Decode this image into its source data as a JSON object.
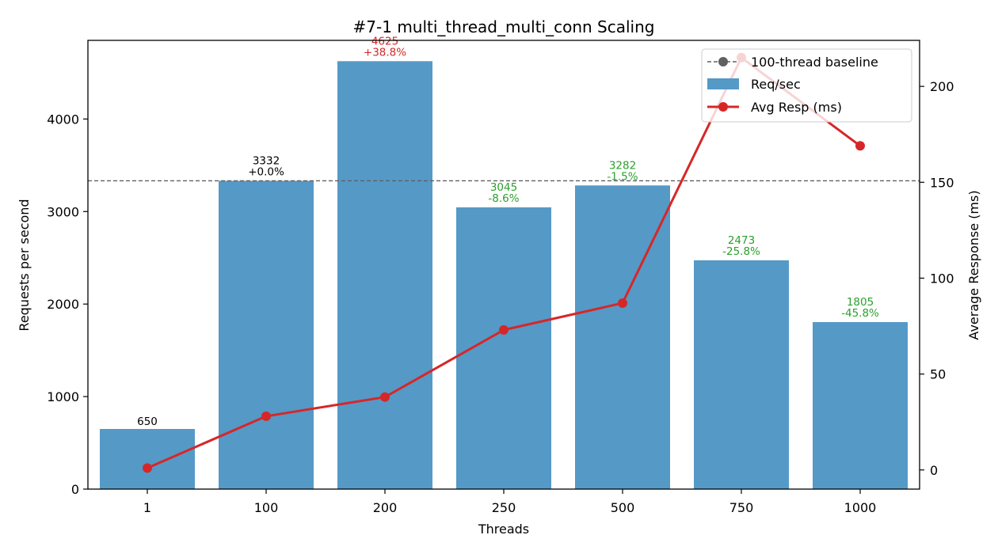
{
  "chart_data": {
    "type": "bar",
    "title": "#7-1 multi_thread_multi_conn Scaling",
    "xlabel": "Threads",
    "ylabel": "Requests per second",
    "y2label": "Average Response (ms)",
    "categories": [
      "1",
      "100",
      "200",
      "250",
      "500",
      "750",
      "1000"
    ],
    "ylim": [
      0,
      4850
    ],
    "y2lim": [
      -10,
      224
    ],
    "yticks": [
      0,
      1000,
      2000,
      3000,
      4000
    ],
    "y2ticks": [
      0,
      50,
      100,
      150,
      200
    ],
    "ytick_labels": [
      "0",
      "1000",
      "2000",
      "3000",
      "4000"
    ],
    "y2tick_labels": [
      "0",
      "50",
      "100",
      "150",
      "200"
    ],
    "series": [
      {
        "name": "Req/sec",
        "kind": "bar",
        "axis": "left",
        "color": "#5599c7",
        "values": [
          650,
          3332,
          4625,
          3045,
          3282,
          2473,
          1805
        ]
      },
      {
        "name": "Avg Resp (ms)",
        "kind": "line",
        "axis": "right",
        "color": "#d62728",
        "values": [
          1,
          28,
          38,
          73,
          87,
          215,
          169
        ]
      }
    ],
    "baseline": {
      "name": "100-thread baseline",
      "value": 3332,
      "color": "#606060",
      "style": "dashed"
    },
    "bar_labels": [
      {
        "value": "650",
        "delta": "",
        "color": "#000000"
      },
      {
        "value": "3332",
        "delta": "+0.0%",
        "color": "#000000"
      },
      {
        "value": "4625",
        "delta": "+38.8%",
        "color": "#d62728"
      },
      {
        "value": "3045",
        "delta": "-8.6%",
        "color": "#2ca02c"
      },
      {
        "value": "3282",
        "delta": "-1.5%",
        "color": "#2ca02c"
      },
      {
        "value": "2473",
        "delta": "-25.8%",
        "color": "#2ca02c"
      },
      {
        "value": "1805",
        "delta": "-45.8%",
        "color": "#2ca02c"
      }
    ],
    "legend": {
      "position": "top-right",
      "entries": [
        "100-thread baseline",
        "Req/sec",
        "Avg Resp (ms)"
      ]
    },
    "grid": false
  }
}
